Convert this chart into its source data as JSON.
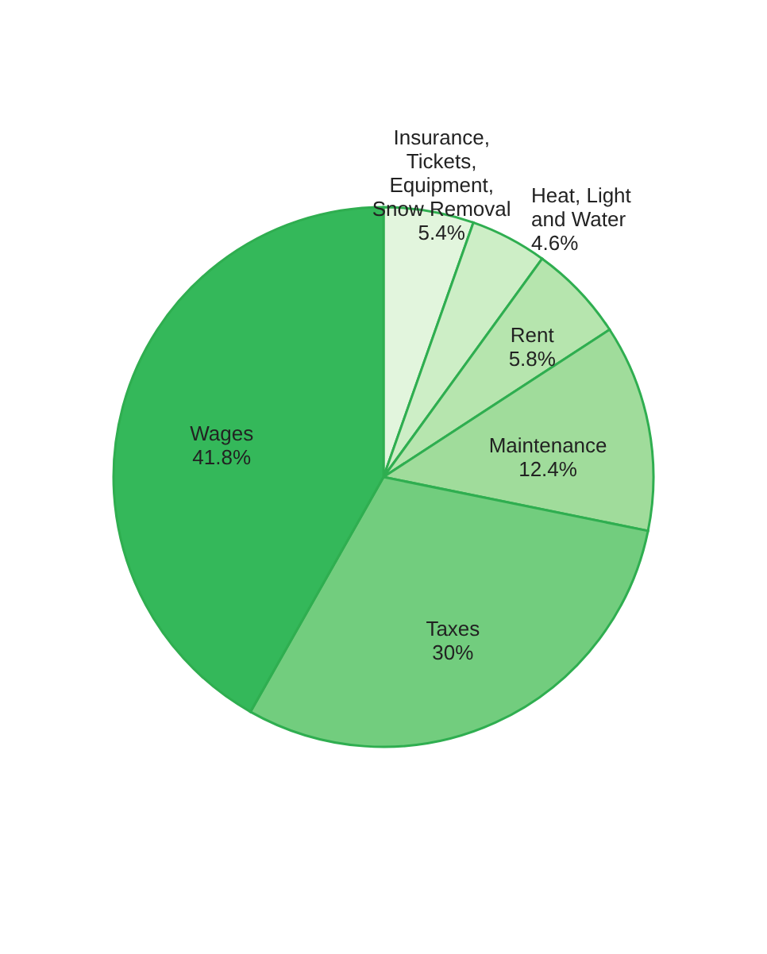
{
  "chart_data": {
    "type": "pie",
    "categories": [
      "Insurance, Tickets, Equipment, Snow Removal",
      "Heat, Light and Water",
      "Rent",
      "Maintenance",
      "Taxes",
      "Wages"
    ],
    "values": [
      5.4,
      4.6,
      5.8,
      12.4,
      30,
      41.8
    ],
    "value_labels": [
      "5.4%",
      "4.6%",
      "5.8%",
      "12.4%",
      "30%",
      "41.8%"
    ],
    "colors": [
      "#e2f5dd",
      "#cdeec6",
      "#b6e5ae",
      "#a0dc9b",
      "#72cd7e",
      "#34b85a"
    ],
    "legend": false
  }
}
